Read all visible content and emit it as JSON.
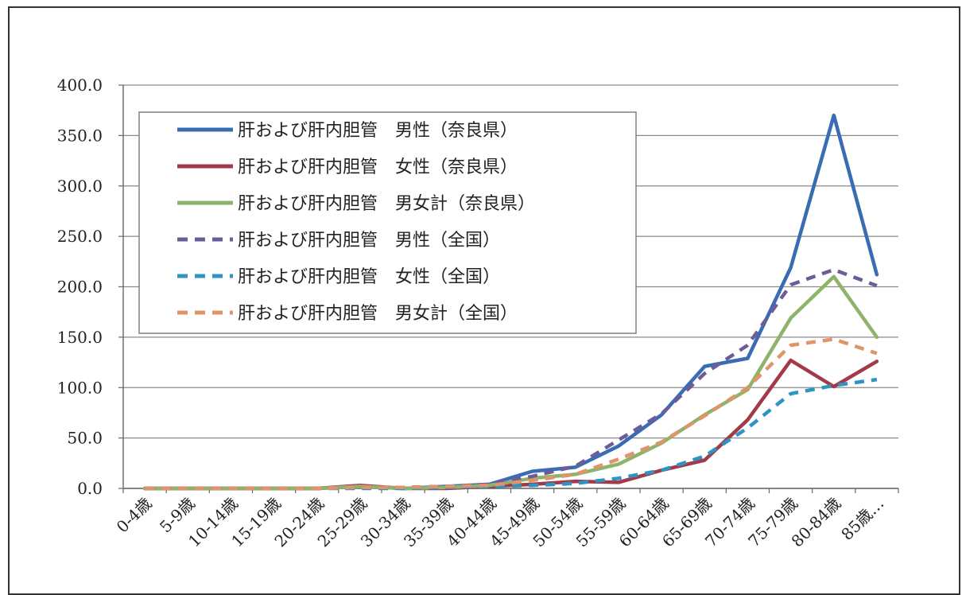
{
  "chart_data": {
    "type": "line",
    "title": "",
    "xlabel": "",
    "ylabel": "",
    "ylim": [
      0,
      400
    ],
    "yticks": [
      "0.0",
      "50.0",
      "100.0",
      "150.0",
      "200.0",
      "250.0",
      "300.0",
      "350.0",
      "400.0"
    ],
    "categories": [
      "0-4歳",
      "5-9歳",
      "10-14歳",
      "15-19歳",
      "20-24歳",
      "25-29歳",
      "30-34歳",
      "35-39歳",
      "40-44歳",
      "45-49歳",
      "50-54歳",
      "55-59歳",
      "60-64歳",
      "65-69歳",
      "70-74歳",
      "75-79歳",
      "80-84歳",
      "85歳…"
    ],
    "grid": true,
    "legend_position": "top-left inside",
    "series": [
      {
        "name": "肝および肝内胆管　男性（奈良県）",
        "color": "#3a6cb4",
        "dash": false,
        "values": [
          0.0,
          0.0,
          0.0,
          0.0,
          0.0,
          2.0,
          0.0,
          2.0,
          4.0,
          17.0,
          21.0,
          42.0,
          73.0,
          121.0,
          129.0,
          219.0,
          370.0,
          212.0
        ]
      },
      {
        "name": "肝および肝内胆管　女性（奈良県）",
        "color": "#a33a4a",
        "dash": false,
        "values": [
          0.0,
          0.0,
          0.0,
          0.0,
          0.0,
          3.0,
          0.0,
          0.0,
          2.0,
          4.0,
          7.0,
          6.0,
          18.0,
          28.0,
          68.0,
          127.0,
          101.0,
          126.0
        ]
      },
      {
        "name": "肝および肝内胆管　男女計（奈良県）",
        "color": "#8fb36a",
        "dash": false,
        "values": [
          0.0,
          0.0,
          0.0,
          0.0,
          0.0,
          2.0,
          0.0,
          1.0,
          3.0,
          10.0,
          14.0,
          24.0,
          45.0,
          73.0,
          98.0,
          169.0,
          210.0,
          150.0
        ]
      },
      {
        "name": "肝および肝内胆管　男性（全国）",
        "color": "#6e5c98",
        "dash": true,
        "values": [
          0.0,
          0.0,
          0.0,
          0.0,
          0.0,
          1.0,
          1.0,
          2.0,
          4.0,
          12.0,
          22.0,
          48.0,
          74.0,
          114.0,
          142.0,
          202.0,
          217.0,
          201.0
        ]
      },
      {
        "name": "肝および肝内胆管　女性（全国）",
        "color": "#2f94c2",
        "dash": true,
        "values": [
          0.0,
          0.0,
          0.0,
          0.0,
          0.0,
          0.0,
          0.0,
          1.0,
          2.0,
          3.0,
          5.0,
          10.0,
          18.0,
          32.0,
          60.0,
          94.0,
          102.0,
          108.0
        ]
      },
      {
        "name": "肝および肝内胆管　男女計（全国）",
        "color": "#e0946a",
        "dash": true,
        "values": [
          0.0,
          0.0,
          0.0,
          0.0,
          0.0,
          1.0,
          1.0,
          2.0,
          3.0,
          8.0,
          14.0,
          29.0,
          46.0,
          72.0,
          100.0,
          142.0,
          148.0,
          134.0
        ]
      }
    ]
  }
}
